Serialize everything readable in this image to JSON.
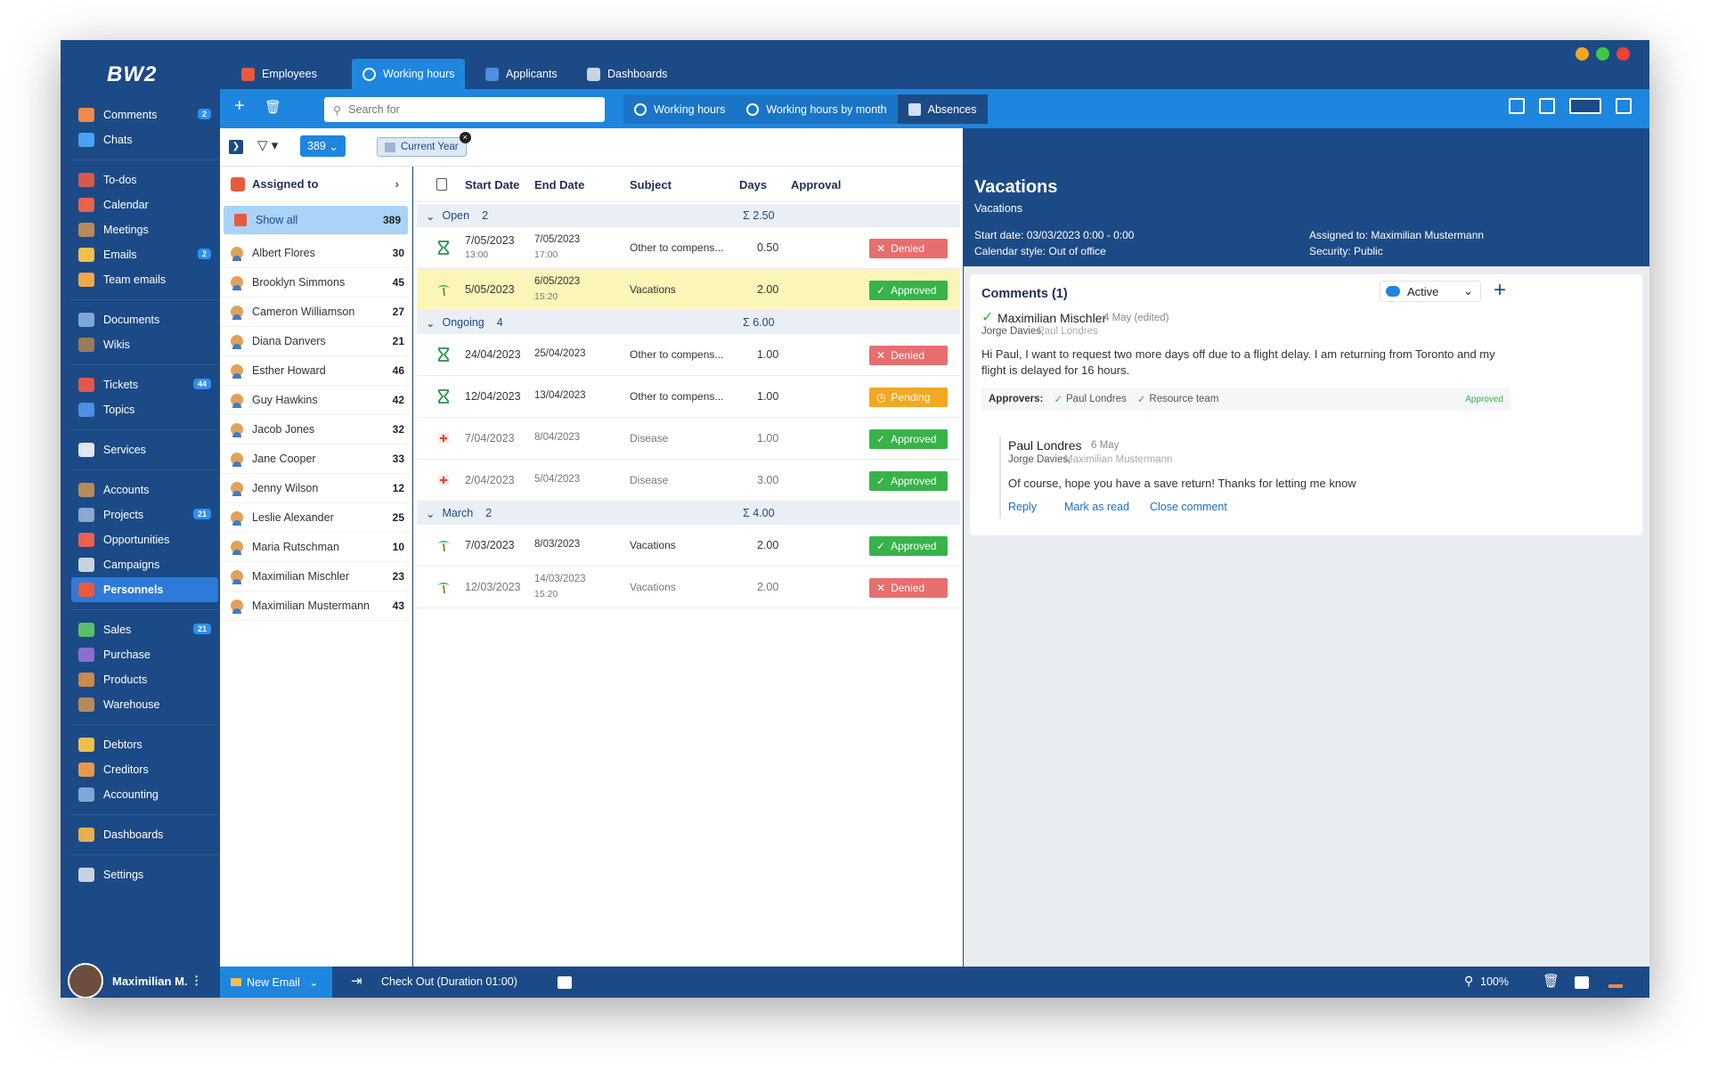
{
  "app": {
    "logo": "BW2"
  },
  "sidebar": {
    "items": [
      {
        "label": "Comments",
        "badge": "2",
        "color": "#f08a4b"
      },
      {
        "label": "Chats",
        "badge": "",
        "color": "#4aa3f0"
      },
      {
        "sep": true
      },
      {
        "label": "To-dos",
        "badge": "",
        "color": "#d65a4a"
      },
      {
        "label": "Calendar",
        "badge": "",
        "color": "#e8624d"
      },
      {
        "label": "Meetings",
        "badge": "",
        "color": "#b78a5a"
      },
      {
        "label": "Emails",
        "badge": "2",
        "color": "#f5c04a"
      },
      {
        "label": "Team emails",
        "badge": "",
        "color": "#f2a84a"
      },
      {
        "sep": true
      },
      {
        "label": "Documents",
        "badge": "",
        "color": "#7fa7d6"
      },
      {
        "label": "Wikis",
        "badge": "",
        "color": "#9b7b5a"
      },
      {
        "sep": true
      },
      {
        "label": "Tickets",
        "badge": "44",
        "color": "#e2574c"
      },
      {
        "label": "Topics",
        "badge": "",
        "color": "#4d8fe0"
      },
      {
        "sep": true
      },
      {
        "label": "Services",
        "badge": "",
        "color": "#dfe6ef"
      },
      {
        "sep": true
      },
      {
        "label": "Accounts",
        "badge": "",
        "color": "#b78a5a"
      },
      {
        "label": "Projects",
        "badge": "21",
        "color": "#8aa8d0"
      },
      {
        "label": "Opportunities",
        "badge": "",
        "color": "#e8624d"
      },
      {
        "label": "Campaigns",
        "badge": "",
        "color": "#c8d3e0"
      },
      {
        "label": "Personnels",
        "badge": "",
        "color": "#e85a3c",
        "active": true
      },
      {
        "sep": true
      },
      {
        "label": "Sales",
        "badge": "21",
        "color": "#5bbf6a"
      },
      {
        "label": "Purchase",
        "badge": "",
        "color": "#8a6fd0"
      },
      {
        "label": "Products",
        "badge": "",
        "color": "#c98a4a"
      },
      {
        "label": "Warehouse",
        "badge": "",
        "color": "#b78a5a"
      },
      {
        "sep": true
      },
      {
        "label": "Debtors",
        "badge": "",
        "color": "#f2c04a"
      },
      {
        "label": "Creditors",
        "badge": "",
        "color": "#e89a4a"
      },
      {
        "label": "Accounting",
        "badge": "",
        "color": "#7fa7d6"
      },
      {
        "sep": true
      },
      {
        "label": "Dashboards",
        "badge": "",
        "color": "#e8b04d"
      },
      {
        "sep": true
      },
      {
        "label": "Settings",
        "badge": "",
        "color": "#c8d3e0"
      }
    ]
  },
  "top_tabs": [
    {
      "label": "Employees",
      "color": "#e85a3c"
    },
    {
      "label": "Working hours",
      "color": "#ffffff",
      "active": true
    },
    {
      "label": "Applicants",
      "color": "#4d8fe0"
    },
    {
      "label": "Dashboards",
      "color": "#c8d3e0"
    }
  ],
  "toolbar": {
    "search_placeholder": "Search for"
  },
  "sub_tabs": [
    {
      "label": "Working hours"
    },
    {
      "label": "Working hours by month"
    },
    {
      "label": "Absences",
      "active": true
    }
  ],
  "filter": {
    "count": "389",
    "chip": "Current Year"
  },
  "assigned": {
    "title": "Assigned to",
    "people": [
      {
        "name": "Show all",
        "count": "389",
        "selected": true
      },
      {
        "name": "Albert Flores",
        "count": "30"
      },
      {
        "name": "Brooklyn Simmons",
        "count": "45"
      },
      {
        "name": "Cameron Williamson",
        "count": "27"
      },
      {
        "name": "Diana Danvers",
        "count": "21"
      },
      {
        "name": "Esther Howard",
        "count": "46"
      },
      {
        "name": "Guy Hawkins",
        "count": "42"
      },
      {
        "name": "Jacob Jones",
        "count": "32"
      },
      {
        "name": "Jane Cooper",
        "count": "33"
      },
      {
        "name": "Jenny Wilson",
        "count": "12"
      },
      {
        "name": "Leslie Alexander",
        "count": "25"
      },
      {
        "name": "Maria Rutschman",
        "count": "10"
      },
      {
        "name": "Maximilian Mischler",
        "count": "23"
      },
      {
        "name": "Maximilian Mustermann",
        "count": "43"
      }
    ]
  },
  "grid": {
    "columns": {
      "start": "Start Date",
      "end": "End Date",
      "subject": "Subject",
      "days": "Days",
      "approval": "Approval"
    },
    "groups": [
      {
        "label": "Open",
        "count": "2",
        "sum": "Σ 2.50",
        "rows": [
          {
            "icon": "hourglass",
            "start": "7/05/2023",
            "start_time": "13:00",
            "end": "7/05/2023",
            "end_time": "17:00",
            "subject": "Other to compens...",
            "days": "0.50",
            "status": "Denied",
            "st": "d"
          },
          {
            "icon": "palm",
            "start": "5/05/2023",
            "start_time": "",
            "end": "6/05/2023",
            "end_time": "15:20",
            "subject": "Vacations",
            "days": "2.00",
            "status": "Approved",
            "st": "a",
            "hl": true
          }
        ]
      },
      {
        "label": "Ongoing",
        "count": "4",
        "sum": "Σ 6.00",
        "rows": [
          {
            "icon": "hourglass",
            "start": "24/04/2023",
            "start_time": "",
            "end": "25/04/2023",
            "end_time": "",
            "subject": "Other to compens...",
            "days": "1.00",
            "status": "Denied",
            "st": "d"
          },
          {
            "icon": "hourglass",
            "start": "12/04/2023",
            "start_time": "",
            "end": "13/04/2023",
            "end_time": "",
            "subject": "Other to compens...",
            "days": "1.00",
            "status": "Pending",
            "st": "p"
          },
          {
            "icon": "cross",
            "start": "7/04/2023",
            "start_time": "",
            "end": "8/04/2023",
            "end_time": "",
            "subject": "Disease",
            "days": "1.00",
            "status": "Approved",
            "st": "a",
            "dim": true
          },
          {
            "icon": "cross",
            "start": "2/04/2023",
            "start_time": "",
            "end": "5/04/2023",
            "end_time": "",
            "subject": "Disease",
            "days": "3.00",
            "status": "Approved",
            "st": "a",
            "dim": true
          }
        ]
      },
      {
        "label": "March",
        "count": "2",
        "sum": "Σ 4.00",
        "rows": [
          {
            "icon": "palm",
            "start": "7/03/2023",
            "start_time": "",
            "end": "8/03/2023",
            "end_time": "",
            "subject": "Vacations",
            "days": "2.00",
            "status": "Approved",
            "st": "a"
          },
          {
            "icon": "palm",
            "start": "12/03/2023",
            "start_time": "",
            "end": "14/03/2023",
            "end_time": "15:20",
            "subject": "Vacations",
            "days": "2.00",
            "status": "Denied",
            "st": "d",
            "dim": true
          }
        ]
      }
    ]
  },
  "detail": {
    "title": "Vacations",
    "subtitle": "Vacations",
    "start": "Start date: 03/03/2023 0:00 - 0:00",
    "style": "Calendar style: Out of office",
    "assigned": "Assigned to: Maximilian Mustermann",
    "security": "Security: Public",
    "comments": {
      "title": "Comments (1)",
      "filter": "Active",
      "author": "Maximilian Mischler",
      "date": "4 May (edited)",
      "to": "Jorge Davies,",
      "to2": "Paul Londres",
      "text": "Hi Paul, I want to request two more days off due to a flight delay. I am returning from Toronto and my flight is delayed for 16 hours.",
      "approvers_label": "Approvers:",
      "approver1": "Paul Londres",
      "approver2": "Resource team",
      "approved": "Approved",
      "reply_author": "Paul Londres",
      "reply_date": "6 May",
      "reply_to": "Jorge Davies,",
      "reply_to2": "Maximilian Mustermann",
      "reply_text": "Of course, hope you have a save return! Thanks for letting me know",
      "actions": [
        "Reply",
        "Mark as read",
        "Close comment"
      ]
    }
  },
  "bottom": {
    "user": "Maximilian M.",
    "new_email": "New Email",
    "checkout": "Check Out (Duration 01:00)",
    "zoom": "100%"
  },
  "colors": {
    "navy": "#1c4a86",
    "blue": "#1e86df",
    "denied": "#e76e6e",
    "approved": "#37b34a",
    "pending": "#f2a822"
  }
}
